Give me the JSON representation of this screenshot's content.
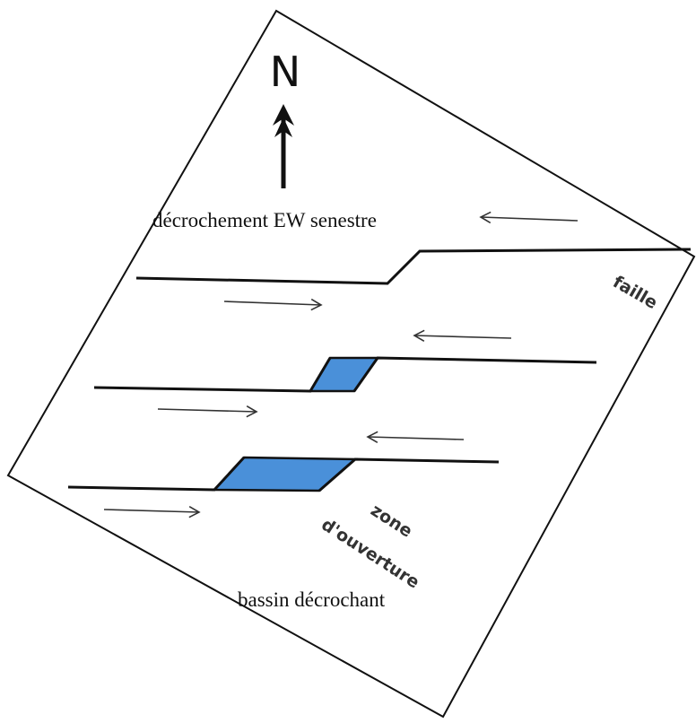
{
  "north_label": "N",
  "title": "décrochement EW senestre",
  "fault_label": "faille",
  "opening_label_line1": "zone",
  "opening_label_line2": "d'ouverture",
  "basin_label": "bassin décrochant",
  "colors": {
    "stroke": "#111111",
    "basin_fill": "#4a90d9",
    "arrow_thin": "#333333"
  }
}
